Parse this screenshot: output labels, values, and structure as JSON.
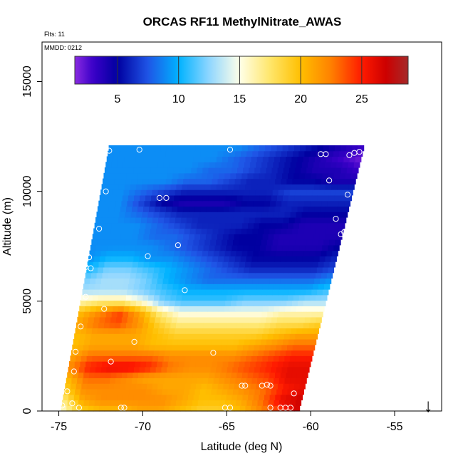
{
  "chart_data": {
    "type": "heatmap",
    "title": "ORCAS RF11 MethylNitrate_AWAS",
    "annotations": {
      "flts": "Flts: 11",
      "mmdd": "MMDD: 0212"
    },
    "xlabel": "Latitude (deg N)",
    "ylabel": "Altitude (m)",
    "xlim": [
      -76,
      -52.2
    ],
    "ylim": [
      0,
      16800
    ],
    "x_ticks": [
      -75,
      -70,
      -65,
      -60,
      -55
    ],
    "x_tick_labels": [
      "-75",
      "-70",
      "-65",
      "-60",
      "-55"
    ],
    "y_ticks": [
      0,
      5000,
      10000,
      15000
    ],
    "y_tick_labels": [
      "0",
      "5000",
      "10000",
      "15000"
    ],
    "colorbar": {
      "range": [
        1.5,
        28.8
      ],
      "ticks": [
        5,
        10,
        15,
        20,
        25
      ],
      "tick_labels": [
        "5",
        "10",
        "15",
        "20",
        "25"
      ],
      "stops": [
        {
          "v": 1.5,
          "color": "#8a2be2"
        },
        {
          "v": 3.0,
          "color": "#3a00c8"
        },
        {
          "v": 5.0,
          "color": "#0000a0"
        },
        {
          "v": 7.5,
          "color": "#1f55e6"
        },
        {
          "v": 10.0,
          "color": "#00b2ff"
        },
        {
          "v": 12.5,
          "color": "#8fd6ff"
        },
        {
          "v": 15.0,
          "color": "#ffffe8"
        },
        {
          "v": 17.5,
          "color": "#ffe66a"
        },
        {
          "v": 20.0,
          "color": "#ffbf00"
        },
        {
          "v": 22.5,
          "color": "#ff8000"
        },
        {
          "v": 25.0,
          "color": "#ff1a00"
        },
        {
          "v": 27.0,
          "color": "#cc0000"
        },
        {
          "v": 28.8,
          "color": "#a52a2a"
        }
      ]
    },
    "field_extent": {
      "alt_range": [
        0,
        12100
      ],
      "lat_left_bottom": -74.9,
      "lat_left_top": -72.0,
      "lat_right_bottom": -60.7,
      "lat_right_top": -56.8
    },
    "layers": [
      {
        "alt": 0,
        "values": [
          15,
          19,
          20,
          20,
          21,
          21,
          20,
          19,
          19,
          20,
          22,
          24,
          27
        ]
      },
      {
        "alt": 500,
        "values": [
          17,
          21,
          22,
          22,
          22,
          22,
          21,
          20,
          20,
          21,
          23,
          26,
          27
        ]
      },
      {
        "alt": 1000,
        "values": [
          19,
          22,
          22,
          22,
          22,
          21,
          21,
          20,
          21,
          22,
          23,
          25,
          26
        ]
      },
      {
        "alt": 1500,
        "values": [
          20,
          23,
          23,
          22,
          21,
          21,
          21,
          21,
          22,
          23,
          24,
          26,
          26
        ]
      },
      {
        "alt": 2000,
        "values": [
          22,
          25,
          26,
          26,
          25,
          23,
          22,
          22,
          23,
          24,
          25,
          26,
          26
        ]
      },
      {
        "alt": 2500,
        "values": [
          21,
          23,
          23,
          23,
          23,
          22,
          22,
          22,
          22,
          23,
          24,
          25,
          25
        ]
      },
      {
        "alt": 3000,
        "values": [
          20,
          21,
          21,
          21,
          20,
          20,
          20,
          20,
          20,
          21,
          22,
          23,
          23
        ]
      },
      {
        "alt": 3500,
        "values": [
          20,
          21,
          21,
          21,
          20,
          19,
          19,
          19,
          19,
          19,
          20,
          21,
          21
        ]
      },
      {
        "alt": 4000,
        "values": [
          21,
          23,
          24,
          22,
          19,
          17,
          17,
          17,
          17,
          17,
          18,
          18,
          19
        ]
      },
      {
        "alt": 4500,
        "values": [
          20,
          22,
          24,
          21,
          17,
          15,
          15,
          15,
          15,
          15,
          16,
          16,
          16
        ]
      },
      {
        "alt": 5000,
        "values": [
          16,
          17,
          17,
          15,
          12,
          11,
          11,
          11,
          12,
          12,
          12,
          13,
          13
        ]
      },
      {
        "alt": 5500,
        "values": [
          13,
          13,
          13,
          12,
          11,
          10,
          10,
          10,
          10,
          10,
          10,
          10,
          11
        ]
      },
      {
        "alt": 6000,
        "values": [
          12,
          13,
          13,
          12,
          10,
          9,
          8,
          8,
          8,
          8,
          8,
          8,
          9
        ]
      },
      {
        "alt": 6500,
        "values": [
          10,
          12,
          12,
          11,
          10,
          9,
          8,
          7,
          6,
          6,
          6,
          6,
          7
        ]
      },
      {
        "alt": 7000,
        "values": [
          9,
          10,
          10,
          9,
          9,
          8,
          7,
          6,
          5,
          5,
          5,
          5,
          6
        ]
      },
      {
        "alt": 7500,
        "values": [
          9,
          9,
          9,
          9,
          8,
          7,
          6,
          5,
          5,
          4,
          4,
          4,
          5
        ]
      },
      {
        "alt": 8000,
        "values": [
          9,
          9,
          9,
          8,
          8,
          7,
          6,
          5,
          5,
          4,
          4,
          4,
          4
        ]
      },
      {
        "alt": 8500,
        "values": [
          9,
          9,
          9,
          8,
          7,
          6,
          6,
          6,
          5,
          5,
          4,
          4,
          4
        ]
      },
      {
        "alt": 9000,
        "values": [
          9,
          9,
          8,
          7,
          6,
          6,
          6,
          6,
          6,
          6,
          5,
          5,
          5
        ]
      },
      {
        "alt": 9500,
        "values": [
          9,
          9,
          7,
          5,
          4,
          4,
          4,
          5,
          5,
          6,
          6,
          6,
          6
        ]
      },
      {
        "alt": 10000,
        "values": [
          9,
          9,
          8,
          7,
          6,
          6,
          6,
          6,
          6,
          7,
          7,
          7,
          7
        ]
      },
      {
        "alt": 10500,
        "values": [
          9,
          9,
          9,
          9,
          8,
          8,
          7,
          6,
          6,
          5,
          5,
          4,
          4
        ]
      },
      {
        "alt": 11000,
        "values": [
          9,
          9,
          9,
          9,
          9,
          8,
          8,
          7,
          6,
          5,
          4,
          4,
          3
        ]
      },
      {
        "alt": 11500,
        "values": [
          9,
          9,
          9,
          9,
          9,
          9,
          8,
          7,
          6,
          5,
          4,
          3,
          2
        ]
      },
      {
        "alt": 12000,
        "values": [
          9,
          9,
          9,
          9,
          9,
          9,
          9,
          8,
          7,
          6,
          5,
          4,
          3
        ]
      }
    ],
    "samples": [
      {
        "lat": -72.0,
        "alt": 11850
      },
      {
        "lat": -70.2,
        "alt": 11900
      },
      {
        "lat": -64.8,
        "alt": 11900
      },
      {
        "lat": -59.4,
        "alt": 11700
      },
      {
        "lat": -59.1,
        "alt": 11700
      },
      {
        "lat": -57.7,
        "alt": 11650
      },
      {
        "lat": -57.4,
        "alt": 11750
      },
      {
        "lat": -57.1,
        "alt": 11800
      },
      {
        "lat": -72.2,
        "alt": 10000
      },
      {
        "lat": -58.9,
        "alt": 10500
      },
      {
        "lat": -57.8,
        "alt": 9850
      },
      {
        "lat": -69.0,
        "alt": 9700
      },
      {
        "lat": -68.6,
        "alt": 9700
      },
      {
        "lat": -58.5,
        "alt": 8750
      },
      {
        "lat": -72.6,
        "alt": 8300
      },
      {
        "lat": -73.4,
        "alt": 8200
      },
      {
        "lat": -58.2,
        "alt": 8050
      },
      {
        "lat": -58.0,
        "alt": 8150
      },
      {
        "lat": -67.9,
        "alt": 7550
      },
      {
        "lat": -73.8,
        "alt": 7300
      },
      {
        "lat": -69.7,
        "alt": 7050
      },
      {
        "lat": -73.2,
        "alt": 7000
      },
      {
        "lat": -73.4,
        "alt": 6550
      },
      {
        "lat": -73.1,
        "alt": 6500
      },
      {
        "lat": -67.5,
        "alt": 5500
      },
      {
        "lat": -73.4,
        "alt": 5200
      },
      {
        "lat": -72.3,
        "alt": 4650
      },
      {
        "lat": -73.7,
        "alt": 3850
      },
      {
        "lat": -70.5,
        "alt": 3150
      },
      {
        "lat": -65.8,
        "alt": 2650
      },
      {
        "lat": -74.0,
        "alt": 2700
      },
      {
        "lat": -71.9,
        "alt": 2250
      },
      {
        "lat": -74.1,
        "alt": 1800
      },
      {
        "lat": -64.1,
        "alt": 1150
      },
      {
        "lat": -63.9,
        "alt": 1150
      },
      {
        "lat": -62.9,
        "alt": 1150
      },
      {
        "lat": -62.6,
        "alt": 1200
      },
      {
        "lat": -62.4,
        "alt": 1150
      },
      {
        "lat": -74.5,
        "alt": 900
      },
      {
        "lat": -61.0,
        "alt": 800
      },
      {
        "lat": -74.2,
        "alt": 350
      },
      {
        "lat": -74.8,
        "alt": 250
      },
      {
        "lat": -73.8,
        "alt": 150
      },
      {
        "lat": -71.3,
        "alt": 150
      },
      {
        "lat": -71.1,
        "alt": 150
      },
      {
        "lat": -65.1,
        "alt": 150
      },
      {
        "lat": -64.8,
        "alt": 150
      },
      {
        "lat": -62.4,
        "alt": 150
      },
      {
        "lat": -61.8,
        "alt": 150
      },
      {
        "lat": -61.5,
        "alt": 150
      },
      {
        "lat": -61.2,
        "alt": 150
      }
    ],
    "direction_arrow": {
      "lat": -53.0,
      "symbol": "↓"
    }
  }
}
